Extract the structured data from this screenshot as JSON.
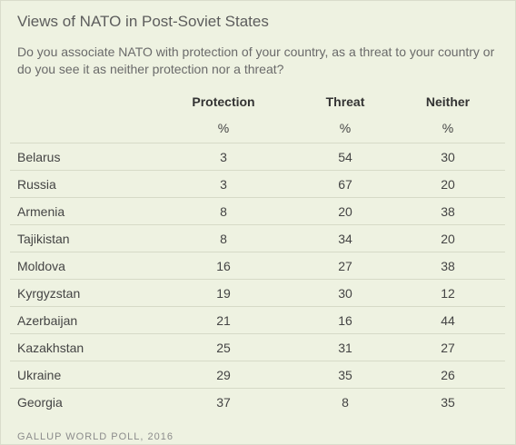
{
  "title": "Views of NATO in Post-Soviet States",
  "subtitle": "Do you associate NATO with protection of your country, as a threat to your country or do you see it as neither protection nor a threat?",
  "source": "GALLUP WORLD POLL, 2016",
  "chart_data": {
    "type": "table",
    "title": "Views of NATO in Post-Soviet States",
    "columns": [
      "Protection",
      "Threat",
      "Neither"
    ],
    "unit": "%",
    "rows": [
      {
        "country": "Belarus",
        "values": [
          3,
          54,
          30
        ]
      },
      {
        "country": "Russia",
        "values": [
          3,
          67,
          20
        ]
      },
      {
        "country": "Armenia",
        "values": [
          8,
          20,
          38
        ]
      },
      {
        "country": "Tajikistan",
        "values": [
          8,
          34,
          20
        ]
      },
      {
        "country": "Moldova",
        "values": [
          16,
          27,
          38
        ]
      },
      {
        "country": "Kyrgyzstan",
        "values": [
          19,
          30,
          12
        ]
      },
      {
        "country": "Azerbaijan",
        "values": [
          21,
          16,
          44
        ]
      },
      {
        "country": "Kazakhstan",
        "values": [
          25,
          31,
          27
        ]
      },
      {
        "country": "Ukraine",
        "values": [
          29,
          35,
          26
        ]
      },
      {
        "country": "Georgia",
        "values": [
          37,
          8,
          35
        ]
      }
    ]
  }
}
